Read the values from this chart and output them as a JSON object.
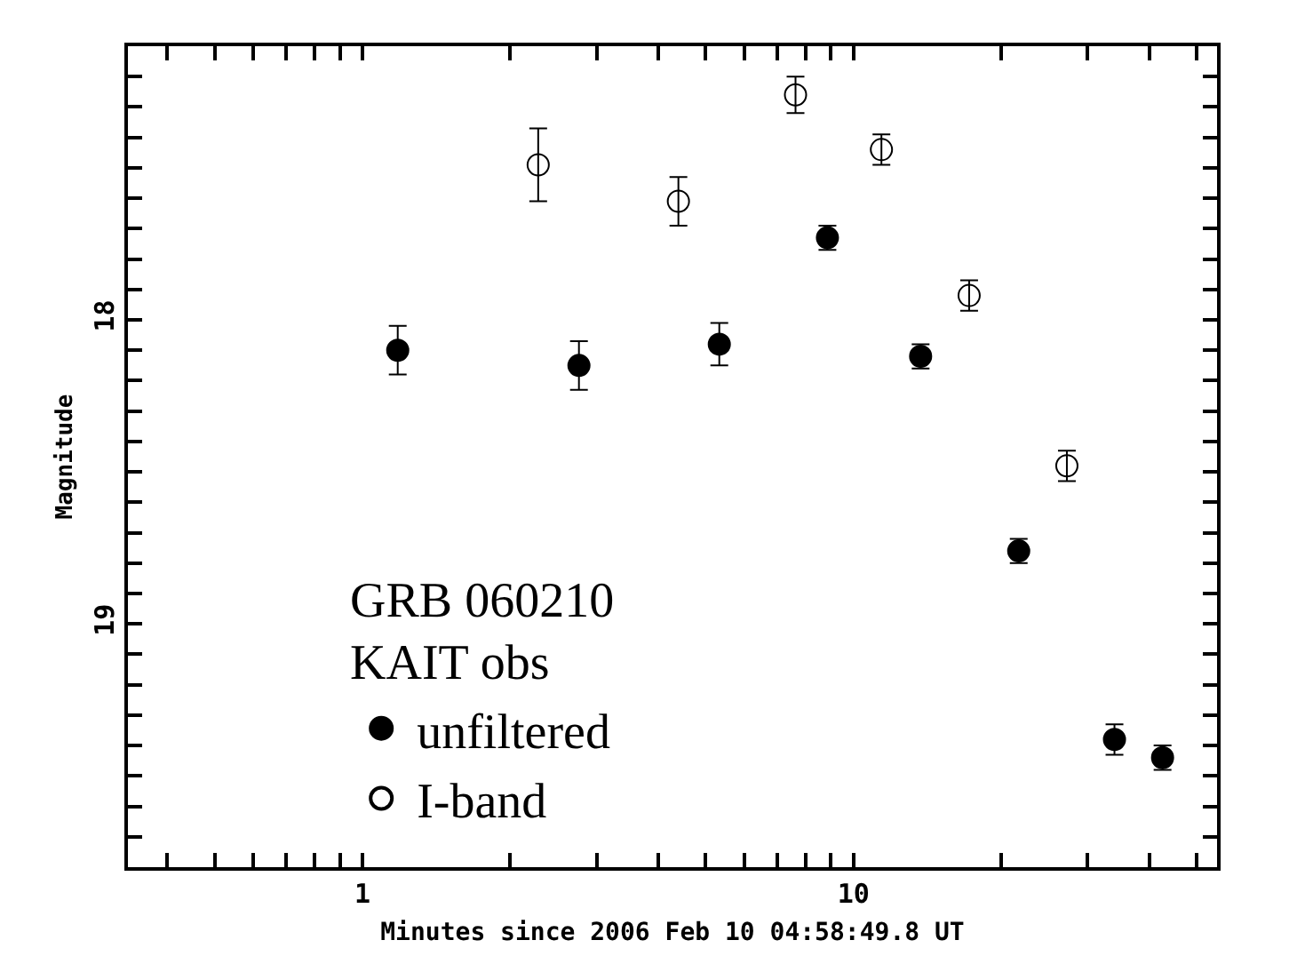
{
  "chart_data": {
    "type": "scatter",
    "xlabel": "Minutes since 2006 Feb 10 04:58:49.8 UT",
    "ylabel": "Magnitude",
    "annotations": [
      "GRB 060210",
      "KAIT obs"
    ],
    "series": [
      {
        "name": "unfiltered",
        "color": "#000000",
        "x": [
          1.18,
          2.76,
          5.33,
          8.85,
          13.7,
          21.7,
          34.0,
          42.6
        ],
        "values": [
          18.1,
          18.15,
          18.08,
          17.73,
          18.12,
          18.76,
          19.38,
          19.44
        ],
        "errors": [
          0.08,
          0.08,
          0.07,
          0.04,
          0.04,
          0.04,
          0.05,
          0.04
        ]
      },
      {
        "name": "I-band",
        "color": "#000000",
        "x": [
          2.28,
          4.4,
          7.62,
          11.4,
          17.2,
          27.2
        ],
        "values": [
          17.49,
          17.61,
          17.26,
          17.44,
          17.92,
          18.48
        ],
        "errors": [
          0.12,
          0.08,
          0.06,
          0.05,
          0.05,
          0.05
        ]
      }
    ],
    "log": "x",
    "marker": "circle",
    "legend": "bottom left",
    "grid": false,
    "xlim": [
      0.333,
      55
    ],
    "ylim": [
      19.8,
      17.1
    ],
    "xticks": [
      {
        "value": 0.4,
        "label": null
      },
      {
        "value": 0.5,
        "label": null
      },
      {
        "value": 0.6,
        "label": null
      },
      {
        "value": 0.7,
        "label": null
      },
      {
        "value": 0.8,
        "label": null
      },
      {
        "value": 0.9,
        "label": null
      },
      1,
      {
        "value": 2,
        "label": null
      },
      {
        "value": 3,
        "label": null
      },
      {
        "value": 4,
        "label": null
      },
      {
        "value": 5,
        "label": null
      },
      {
        "value": 6,
        "label": null
      },
      {
        "value": 7,
        "label": null
      },
      {
        "value": 8,
        "label": null
      },
      {
        "value": 9,
        "label": null
      },
      10,
      {
        "value": 20,
        "label": null
      },
      {
        "value": 30,
        "label": null
      },
      {
        "value": 40,
        "label": null
      },
      {
        "value": 50,
        "label": null
      }
    ],
    "yticks": [
      {
        "value": 17.2,
        "label": null
      },
      {
        "value": 17.3,
        "label": null
      },
      {
        "value": 17.4,
        "label": null
      },
      {
        "value": 17.5,
        "label": null
      },
      {
        "value": 17.6,
        "label": null
      },
      {
        "value": 17.7,
        "label": null
      },
      {
        "value": 17.8,
        "label": null
      },
      {
        "value": 17.9,
        "label": null
      },
      18,
      {
        "value": 18.1,
        "label": null
      },
      {
        "value": 18.2,
        "label": null
      },
      {
        "value": 18.3,
        "label": null
      },
      {
        "value": 18.4,
        "label": null
      },
      {
        "value": 18.5,
        "label": null
      },
      {
        "value": 18.6,
        "label": null
      },
      {
        "value": 18.7,
        "label": null
      },
      {
        "value": 18.8,
        "label": null
      },
      {
        "value": 18.9,
        "label": null
      },
      19,
      {
        "value": 19.1,
        "label": null
      },
      {
        "value": 19.2,
        "label": null
      },
      {
        "value": 19.3,
        "label": null
      },
      {
        "value": 19.4,
        "label": null
      },
      {
        "value": 19.5,
        "label": null
      },
      {
        "value": 19.6,
        "label": null
      },
      {
        "value": 19.7,
        "label": null
      }
    ]
  }
}
